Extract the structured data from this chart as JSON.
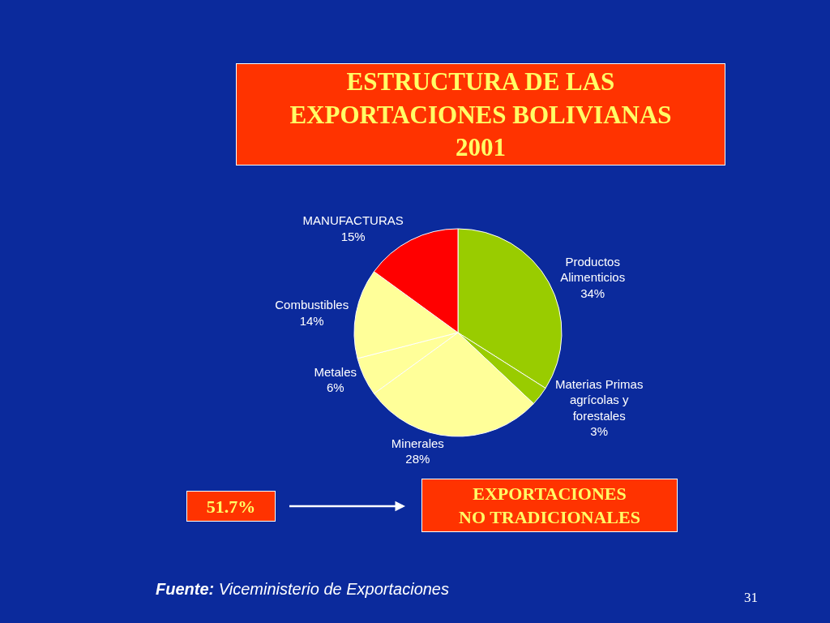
{
  "chart_data": {
    "type": "pie",
    "title": "ESTRUCTURA DE LAS\nEXPORTACIONES BOLIVIANAS\n2001",
    "categories": [
      "Productos\nAlimenticios",
      "Materias Primas\nagrícolas y\nforestales",
      "Minerales",
      "Metales",
      "Combustibles",
      "MANUFACTURAS"
    ],
    "values": [
      34,
      3,
      28,
      6,
      14,
      15
    ],
    "value_labels": [
      "34%",
      "3%",
      "28%",
      "6%",
      "14%",
      "15%"
    ],
    "colors": [
      "#99cc00",
      "#99cc00",
      "#ffff99",
      "#ffff99",
      "#ffff99",
      "#ff0000"
    ],
    "annotations": [
      "51.7%",
      "EXPORTACIONES\nNO TRADICIONALES",
      "Fuente: Viceministerio de Exportaciones",
      "31"
    ]
  }
}
